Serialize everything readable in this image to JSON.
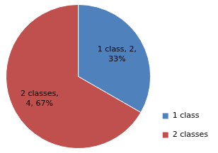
{
  "chart_data": {
    "type": "pie",
    "categories": [
      "1 class",
      "2 classes"
    ],
    "values": [
      2,
      4
    ],
    "value_labels": [
      "1 class, 2, 33%",
      "2 classes, 4, 67%"
    ],
    "colors": [
      "#4f81bd",
      "#c0504d"
    ],
    "data_labels": true,
    "legend": "right"
  }
}
